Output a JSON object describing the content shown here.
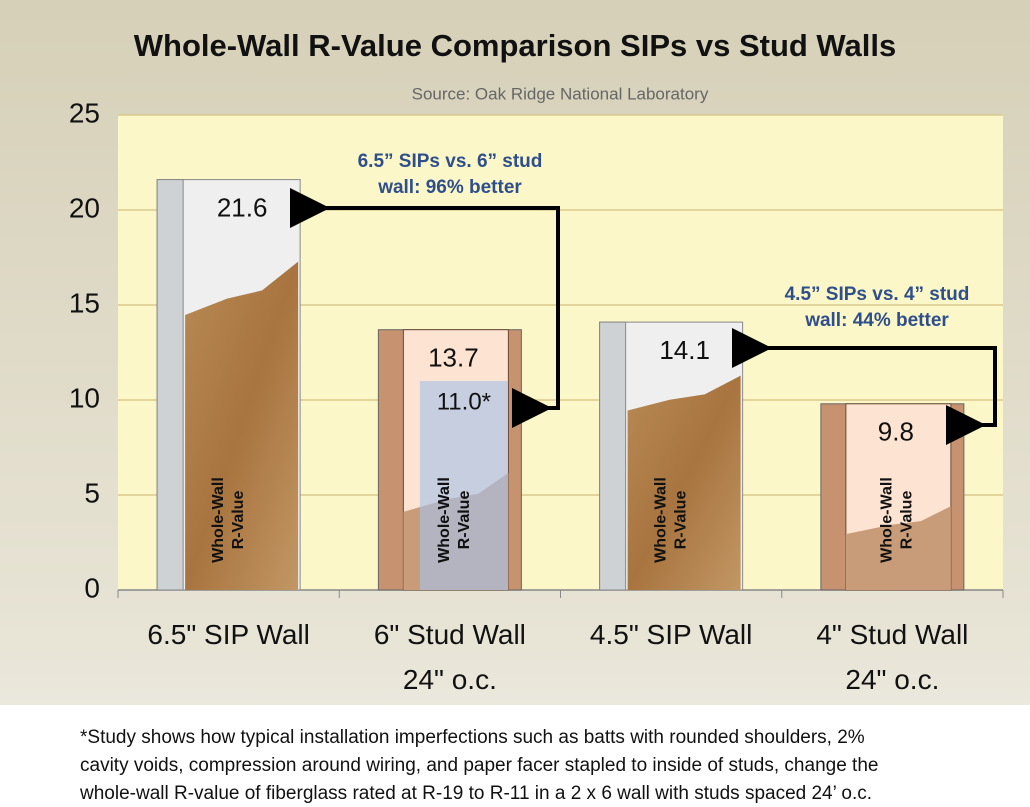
{
  "chart_data": {
    "type": "bar",
    "title": "Whole-Wall R-Value Comparison SIPs vs Stud Walls",
    "subtitle": "Source: Oak Ridge National Laboratory",
    "categories": [
      "6.5\" SIP Wall",
      "6\" Stud Wall\n24\" o.c.",
      "4.5\" SIP Wall",
      "4\" Stud Wall\n24\" o.c."
    ],
    "series": [
      {
        "values": [
          21.6,
          13.7,
          14.1,
          9.8
        ]
      },
      {
        "values": [
          null,
          11.0,
          null,
          null
        ],
        "value_labels": [
          null,
          "11.0*",
          null,
          null
        ],
        "color": "#a9c1e6"
      }
    ],
    "inner_label": [
      "Whole-Wall",
      "R-Value"
    ],
    "ylim": [
      0,
      25
    ],
    "yticks": [
      0,
      5,
      10,
      15,
      20,
      25
    ],
    "grid": true,
    "annotations": [
      [
        "6.5” SIPs vs. 6” stud",
        "wall: 96% better"
      ],
      [
        "4.5” SIPs  vs. 4” stud",
        "wall: 44% better"
      ]
    ],
    "footnote": [
      "*Study shows how typical installation imperfections such as batts with rounded shoulders, 2%",
      "cavity voids, compression around wiring, and paper facer stapled to inside of studs, change the",
      "whole-wall R-value of fiberglass rated at R-19 to R-11 in a 2 x 6 wall with studs spaced 24’ o.c."
    ]
  }
}
